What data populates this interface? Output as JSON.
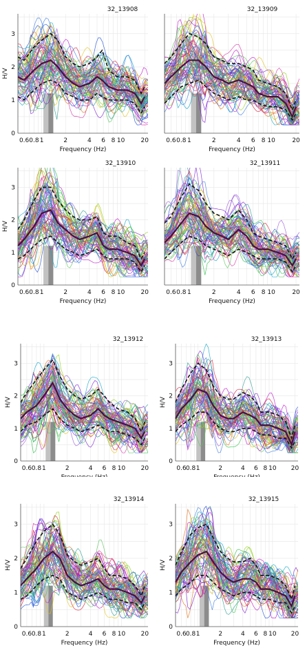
{
  "chart_data": [
    {
      "type": "line",
      "title": "32_13908",
      "xlabel": "Frequency (Hz)",
      "ylabel": "H/V",
      "xscale": "log",
      "xlim": [
        0.5,
        22
      ],
      "ylim": [
        0,
        3.6
      ],
      "xticks": [
        "0.6",
        "0.8",
        "1",
        "2",
        "4",
        "6",
        "8",
        "10",
        "20"
      ],
      "yticks": [
        "0",
        "1",
        "2",
        "3"
      ],
      "peak_band": [
        1.05,
        1.4
      ],
      "mean_curve": {
        "x": [
          0.5,
          0.6,
          0.8,
          1.0,
          1.3,
          1.6,
          2.0,
          2.5,
          3.0,
          4.0,
          5.0,
          5.8,
          7.0,
          9.0,
          12,
          15,
          18,
          20
        ],
        "y": [
          1.7,
          1.6,
          1.9,
          2.1,
          2.2,
          2.0,
          1.7,
          1.5,
          1.4,
          1.5,
          1.7,
          1.6,
          1.4,
          1.3,
          1.3,
          1.2,
          0.9,
          1.1
        ]
      },
      "band_upper": [
        2.3,
        2.2,
        2.6,
        2.8,
        3.0,
        2.8,
        2.3,
        2.1,
        2.0,
        2.1,
        2.3,
        2.5,
        1.9,
        1.7,
        1.7,
        1.6,
        1.2,
        1.4
      ],
      "band_lower": [
        1.1,
        1.0,
        1.3,
        1.5,
        1.6,
        1.5,
        1.2,
        1.1,
        1.0,
        1.0,
        1.2,
        1.1,
        1.0,
        1.0,
        1.0,
        0.9,
        0.6,
        0.8
      ],
      "grid": true,
      "legend": "none"
    },
    {
      "type": "line",
      "title": "32_13909",
      "xlabel": "Frequency (Hz)",
      "ylabel": "",
      "xscale": "log",
      "xlim": [
        0.5,
        22
      ],
      "ylim": [
        0,
        3.6
      ],
      "xticks": [
        "0.6",
        "0.8",
        "1",
        "2",
        "4",
        "6",
        "8",
        "10",
        "20"
      ],
      "yticks": [],
      "peak_band": [
        1.05,
        1.4
      ],
      "mean_curve": {
        "x": [
          0.5,
          0.6,
          0.8,
          1.0,
          1.3,
          1.6,
          2.0,
          2.5,
          3.0,
          4.0,
          5.0,
          6.0,
          7.0,
          9.0,
          12,
          15,
          18,
          20
        ],
        "y": [
          1.5,
          1.7,
          2.0,
          2.2,
          2.2,
          2.0,
          1.7,
          1.6,
          1.5,
          1.6,
          1.5,
          1.4,
          1.2,
          1.1,
          1.1,
          0.9,
          0.5,
          0.8
        ]
      },
      "band_upper": [
        2.1,
        2.3,
        2.7,
        3.0,
        2.9,
        2.7,
        2.3,
        2.2,
        2.1,
        2.1,
        2.0,
        1.9,
        1.6,
        1.5,
        1.4,
        1.2,
        0.7,
        1.0
      ],
      "band_lower": [
        0.9,
        1.1,
        1.4,
        1.5,
        1.6,
        1.4,
        1.2,
        1.1,
        1.0,
        1.1,
        1.0,
        1.0,
        0.9,
        0.8,
        0.8,
        0.7,
        0.4,
        0.6
      ],
      "grid": true,
      "legend": "none"
    },
    {
      "type": "line",
      "title": "32_13910",
      "xlabel": "Frequency (Hz)",
      "ylabel": "H/V",
      "xscale": "log",
      "xlim": [
        0.5,
        22
      ],
      "ylim": [
        0,
        3.6
      ],
      "xticks": [
        "0.6",
        "0.8",
        "1",
        "2",
        "4",
        "6",
        "8",
        "10",
        "20"
      ],
      "yticks": [
        "0",
        "1",
        "2",
        "3"
      ],
      "peak_band": [
        1.05,
        1.4
      ],
      "mean_curve": {
        "x": [
          0.5,
          0.6,
          0.8,
          1.0,
          1.3,
          1.6,
          2.0,
          2.5,
          3.0,
          4.0,
          5.0,
          6.0,
          7.0,
          9.0,
          12,
          15,
          18,
          20
        ],
        "y": [
          1.2,
          1.4,
          1.8,
          2.2,
          2.3,
          1.9,
          1.7,
          1.5,
          1.4,
          1.5,
          1.6,
          1.2,
          1.1,
          1.1,
          1.0,
          0.9,
          0.6,
          0.8
        ]
      },
      "band_upper": [
        1.7,
        2.0,
        2.6,
        3.0,
        3.0,
        2.6,
        2.3,
        2.1,
        2.0,
        2.0,
        2.1,
        1.6,
        1.5,
        1.5,
        1.3,
        1.2,
        0.8,
        1.0
      ],
      "band_lower": [
        0.8,
        0.9,
        1.2,
        1.4,
        1.5,
        1.3,
        1.1,
        1.0,
        0.9,
        1.0,
        1.1,
        0.9,
        0.8,
        0.8,
        0.8,
        0.7,
        0.4,
        0.6
      ],
      "grid": true,
      "legend": "none"
    },
    {
      "type": "line",
      "title": "32_13911",
      "xlabel": "Frequency (Hz)",
      "ylabel": "",
      "xscale": "log",
      "xlim": [
        0.5,
        22
      ],
      "ylim": [
        0,
        3.6
      ],
      "xticks": [
        "0.6",
        "0.8",
        "1",
        "2",
        "4",
        "6",
        "8",
        "10",
        "20"
      ],
      "yticks": [],
      "peak_band": [
        1.05,
        1.4
      ],
      "mean_curve": {
        "x": [
          0.5,
          0.6,
          0.8,
          1.0,
          1.3,
          1.6,
          2.0,
          2.5,
          3.0,
          4.0,
          5.0,
          6.0,
          7.0,
          9.0,
          12,
          15,
          18,
          20
        ],
        "y": [
          1.3,
          1.5,
          1.9,
          2.2,
          2.1,
          1.8,
          1.6,
          1.5,
          1.4,
          1.7,
          1.5,
          1.2,
          1.1,
          1.1,
          1.0,
          0.9,
          0.6,
          0.8
        ]
      },
      "band_upper": [
        1.9,
        2.1,
        2.7,
        3.1,
        2.9,
        2.5,
        2.2,
        2.1,
        2.0,
        2.3,
        2.0,
        1.6,
        1.5,
        1.4,
        1.3,
        1.2,
        0.8,
        1.0
      ],
      "band_lower": [
        0.8,
        1.0,
        1.3,
        1.5,
        1.4,
        1.2,
        1.1,
        1.0,
        0.9,
        1.1,
        1.0,
        0.9,
        0.8,
        0.8,
        0.8,
        0.7,
        0.4,
        0.6
      ],
      "grid": true,
      "legend": "none"
    },
    {
      "type": "line",
      "title": "32_13912",
      "xlabel": "Frequency (Hz)",
      "ylabel": "H/V",
      "xscale": "log",
      "xlim": [
        0.5,
        22
      ],
      "ylim": [
        0,
        3.6
      ],
      "xticks": [
        "0.6",
        "0.8",
        "1",
        "2",
        "4",
        "6",
        "8",
        "10",
        "20"
      ],
      "yticks": [
        "0",
        "1",
        "2",
        "3"
      ],
      "peak_band": [
        1.05,
        1.4
      ],
      "mean_curve": {
        "x": [
          0.5,
          0.6,
          0.8,
          1.0,
          1.3,
          1.6,
          2.0,
          2.5,
          3.0,
          4.0,
          5.0,
          6.0,
          7.0,
          9.0,
          12,
          15,
          18,
          20
        ],
        "y": [
          1.3,
          1.5,
          1.7,
          2.0,
          2.4,
          1.9,
          1.6,
          1.4,
          1.3,
          1.4,
          1.6,
          1.4,
          1.3,
          1.2,
          1.1,
          1.0,
          0.7,
          0.9
        ]
      },
      "band_upper": [
        1.8,
        2.1,
        2.5,
        2.8,
        3.1,
        2.6,
        2.2,
        2.0,
        1.9,
        2.0,
        2.2,
        2.0,
        1.8,
        1.6,
        1.5,
        1.3,
        0.9,
        1.2
      ],
      "band_lower": [
        0.9,
        1.1,
        1.2,
        1.4,
        1.6,
        1.3,
        1.1,
        1.0,
        0.9,
        1.0,
        1.1,
        1.0,
        0.9,
        0.9,
        0.8,
        0.7,
        0.5,
        0.7
      ],
      "grid": true,
      "legend": "none"
    },
    {
      "type": "line",
      "title": "32_13913",
      "xlabel": "Frequency (Hz)",
      "ylabel": "H/V",
      "xscale": "log",
      "xlim": [
        0.5,
        22
      ],
      "ylim": [
        0,
        3.6
      ],
      "xticks": [
        "0.6",
        "0.8",
        "1",
        "2",
        "4",
        "6",
        "8",
        "10",
        "20"
      ],
      "yticks": [
        "0",
        "1",
        "2",
        "3"
      ],
      "peak_band": [
        0.95,
        1.25
      ],
      "mean_curve": {
        "x": [
          0.5,
          0.6,
          0.8,
          1.0,
          1.3,
          1.6,
          2.0,
          2.5,
          3.0,
          4.0,
          5.0,
          6.0,
          7.0,
          9.0,
          12,
          15,
          18,
          20
        ],
        "y": [
          1.3,
          1.6,
          1.9,
          2.2,
          2.1,
          1.7,
          1.4,
          1.3,
          1.3,
          1.5,
          1.4,
          1.3,
          1.1,
          1.1,
          1.0,
          0.9,
          0.5,
          0.9
        ]
      },
      "band_upper": [
        1.8,
        2.2,
        2.7,
        3.0,
        2.8,
        2.3,
        2.0,
        1.9,
        1.9,
        2.1,
        2.0,
        1.8,
        1.5,
        1.5,
        1.4,
        1.2,
        0.7,
        1.1
      ],
      "band_lower": [
        0.9,
        1.1,
        1.3,
        1.5,
        1.5,
        1.2,
        1.0,
        0.9,
        0.9,
        1.0,
        1.0,
        0.9,
        0.8,
        0.8,
        0.7,
        0.7,
        0.4,
        0.6
      ],
      "grid": true,
      "legend": "none"
    },
    {
      "type": "line",
      "title": "32_13914",
      "xlabel": "Frequency (Hz)",
      "ylabel": "H/V",
      "xscale": "log",
      "xlim": [
        0.5,
        22
      ],
      "ylim": [
        0,
        3.6
      ],
      "xticks": [
        "0.6",
        "0.8",
        "1",
        "2",
        "4",
        "6",
        "8",
        "10",
        "20"
      ],
      "yticks": [
        "0",
        "1",
        "2",
        "3"
      ],
      "peak_band": [
        1.0,
        1.3
      ],
      "mean_curve": {
        "x": [
          0.5,
          0.6,
          0.8,
          1.0,
          1.3,
          1.6,
          2.0,
          2.5,
          3.0,
          4.0,
          5.0,
          6.0,
          7.0,
          9.0,
          12,
          15,
          18,
          20
        ],
        "y": [
          1.2,
          1.4,
          1.7,
          2.0,
          2.2,
          2.0,
          1.5,
          1.3,
          1.2,
          1.3,
          1.4,
          1.2,
          1.1,
          1.1,
          1.0,
          0.9,
          0.7,
          0.9
        ]
      },
      "band_upper": [
        1.7,
        2.0,
        2.5,
        2.8,
        3.0,
        2.7,
        2.1,
        1.9,
        1.8,
        1.9,
        2.0,
        1.7,
        1.5,
        1.5,
        1.4,
        1.2,
        0.9,
        1.2
      ],
      "band_lower": [
        0.8,
        0.9,
        1.2,
        1.4,
        1.5,
        1.4,
        1.0,
        0.9,
        0.8,
        0.9,
        1.0,
        0.9,
        0.8,
        0.8,
        0.7,
        0.7,
        0.5,
        0.7
      ],
      "grid": true,
      "legend": "none"
    },
    {
      "type": "line",
      "title": "32_13915",
      "xlabel": "Frequency (Hz)",
      "ylabel": "H/V",
      "xscale": "log",
      "xlim": [
        0.5,
        22
      ],
      "ylim": [
        0,
        3.6
      ],
      "xticks": [
        "0.6",
        "0.8",
        "1",
        "2",
        "4",
        "6",
        "8",
        "10",
        "20"
      ],
      "yticks": [
        "0",
        "1",
        "2",
        "3"
      ],
      "peak_band": [
        1.05,
        1.4
      ],
      "mean_curve": {
        "x": [
          0.5,
          0.6,
          0.8,
          1.0,
          1.3,
          1.6,
          2.0,
          2.5,
          3.0,
          4.0,
          5.0,
          6.0,
          7.0,
          9.0,
          12,
          15,
          18,
          20
        ],
        "y": [
          1.3,
          1.6,
          1.9,
          2.1,
          2.2,
          1.9,
          1.6,
          1.4,
          1.3,
          1.4,
          1.4,
          1.3,
          1.1,
          1.1,
          1.0,
          0.9,
          0.6,
          0.9
        ]
      },
      "band_upper": [
        1.8,
        2.2,
        2.7,
        2.9,
        3.0,
        2.6,
        2.2,
        2.0,
        1.9,
        1.9,
        2.0,
        1.8,
        1.5,
        1.5,
        1.4,
        1.2,
        0.8,
        1.2
      ],
      "band_lower": [
        0.9,
        1.1,
        1.3,
        1.5,
        1.5,
        1.3,
        1.1,
        1.0,
        0.9,
        1.0,
        1.0,
        0.9,
        0.8,
        0.8,
        0.7,
        0.7,
        0.4,
        0.6
      ],
      "grid": true,
      "legend": "none"
    }
  ],
  "style": {
    "mean_color": "#4b0f3f",
    "band_color": "#111111",
    "peak_band_colors": [
      "#c2c2c2",
      "#8c8c8c"
    ],
    "trace_colors": [
      "#7f1fd6",
      "#c012c9",
      "#1f4fd6",
      "#12a6c9",
      "#2fbf4a",
      "#8fd11a",
      "#e3c21a",
      "#e2731a",
      "#d61f3a",
      "#9b5ad9",
      "#2a9d8f",
      "#d633a6",
      "#3c7be0",
      "#5cc35c"
    ]
  }
}
